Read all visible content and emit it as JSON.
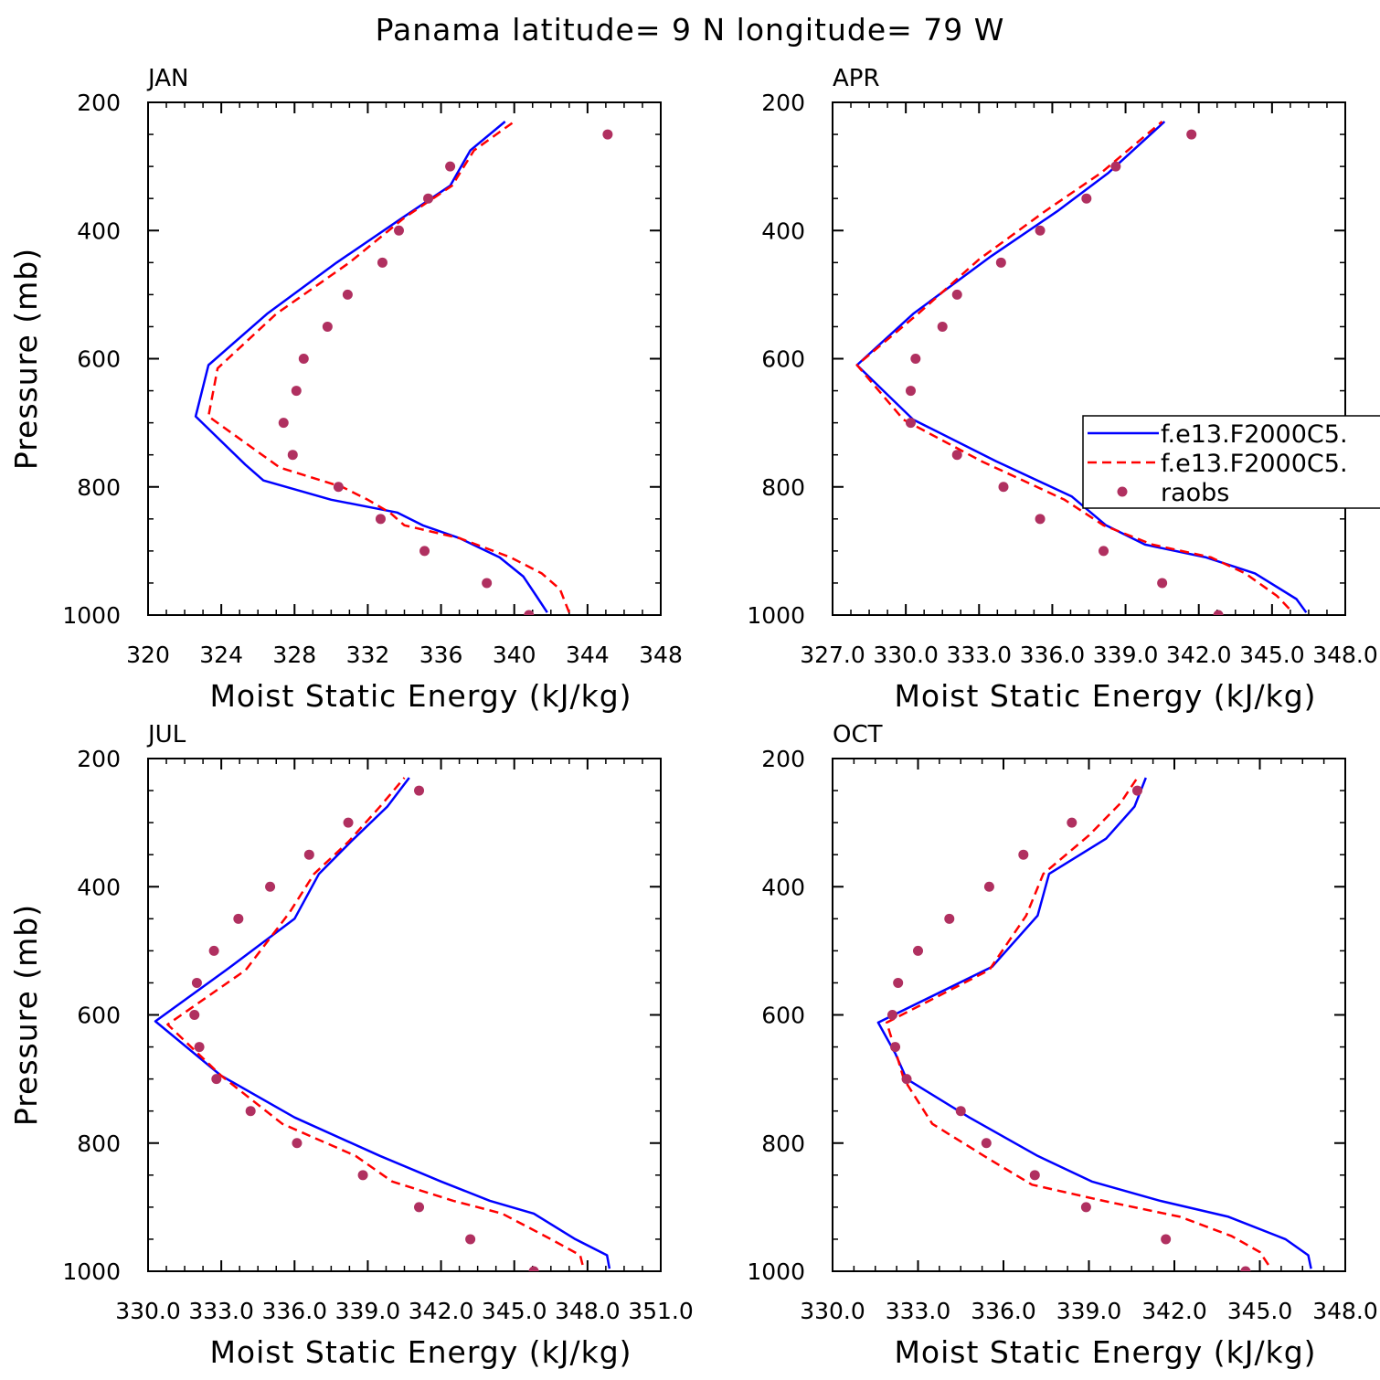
{
  "figure_title": "Panama  latitude= 9 N longitude= 79 W",
  "colors": {
    "model_1": "#0000ff",
    "model_2": "#ff0000",
    "raobs": "#b03060"
  },
  "chart_data": [
    {
      "type": "line",
      "panel_label": "JAN",
      "xlabel": "Moist Static Energy (kJ/kg)",
      "ylabel": "Pressure (mb)",
      "xlim": [
        320,
        348
      ],
      "ylim": [
        1000,
        200
      ],
      "y_reversed": true,
      "xticks": [
        "320",
        "324",
        "328",
        "332",
        "336",
        "340",
        "344",
        "348"
      ],
      "yticks": [
        "200",
        "400",
        "600",
        "800",
        "1000"
      ],
      "legend": null,
      "series": [
        {
          "name": "f.e13.F2000C5.",
          "style": "solid",
          "color": "#0000ff",
          "x": [
            341.8,
            341.2,
            340.5,
            339.2,
            337.0,
            335.0,
            333.6,
            330.0,
            326.3,
            325.3,
            322.6,
            323.3,
            326.5,
            330.3,
            333.9,
            336.5,
            337.6,
            339.5
          ],
          "y": [
            996,
            970,
            940,
            910,
            880,
            860,
            840,
            820,
            790,
            765,
            690,
            610,
            530,
            450,
            380,
            330,
            275,
            230
          ]
        },
        {
          "name": "f.e13.F2000C5.",
          "style": "dashed",
          "color": "#ff0000",
          "x": [
            343.0,
            342.5,
            341.5,
            339.8,
            337.0,
            334.0,
            333.2,
            332.0,
            330.6,
            327.2,
            323.3,
            323.8,
            327.0,
            331.0,
            334.0,
            336.6,
            337.8,
            340.0
          ],
          "y": [
            996,
            960,
            935,
            910,
            880,
            860,
            840,
            820,
            800,
            770,
            690,
            615,
            530,
            450,
            380,
            330,
            275,
            230
          ]
        },
        {
          "name": "raobs",
          "style": "marker",
          "color": "#b03060",
          "x": [
            340.8,
            338.5,
            335.1,
            332.7,
            330.4,
            327.9,
            327.4,
            328.1,
            328.5,
            329.8,
            330.9,
            332.8,
            333.7,
            335.3,
            336.5,
            345.1
          ],
          "y": [
            1000,
            950,
            900,
            850,
            800,
            750,
            700,
            650,
            600,
            550,
            500,
            450,
            400,
            350,
            300,
            250
          ]
        }
      ]
    },
    {
      "type": "line",
      "panel_label": "APR",
      "xlabel": "Moist Static Energy (kJ/kg)",
      "ylabel": "",
      "xlim": [
        327.0,
        348.0
      ],
      "ylim": [
        1000,
        200
      ],
      "y_reversed": true,
      "xticks": [
        "327.0",
        "330.0",
        "333.0",
        "336.0",
        "339.0",
        "342.0",
        "345.0",
        "348.0"
      ],
      "yticks": [
        "200",
        "400",
        "600",
        "800",
        "1000"
      ],
      "legend": {
        "placement": "right",
        "entries": [
          "f.e13.F2000C5.",
          "f.e13.F2000C5.",
          "raobs"
        ]
      },
      "series": [
        {
          "name": "f.e13.F2000C5.",
          "style": "solid",
          "color": "#0000ff",
          "x": [
            346.4,
            346.0,
            344.3,
            342.3,
            339.8,
            338.2,
            336.8,
            333.7,
            330.3,
            328.0,
            330.3,
            333.5,
            336.2,
            338.3,
            340.6
          ],
          "y": [
            996,
            975,
            935,
            910,
            890,
            860,
            815,
            760,
            695,
            610,
            530,
            440,
            370,
            310,
            230
          ]
        },
        {
          "name": "f.e13.F2000C5.",
          "style": "dashed",
          "color": "#ff0000",
          "x": [
            345.7,
            345.2,
            343.9,
            342.5,
            340.1,
            338.1,
            336.5,
            333.1,
            329.9,
            328.0,
            330.5,
            333.0,
            335.7,
            338.0,
            340.5
          ],
          "y": [
            990,
            970,
            935,
            910,
            890,
            860,
            820,
            760,
            695,
            610,
            530,
            445,
            370,
            310,
            230
          ]
        },
        {
          "name": "raobs",
          "style": "marker",
          "color": "#b03060",
          "x": [
            342.8,
            340.5,
            338.1,
            335.5,
            334.0,
            332.1,
            330.2,
            330.2,
            330.4,
            331.5,
            332.1,
            333.9,
            335.5,
            337.4,
            338.6,
            341.7
          ],
          "y": [
            1000,
            950,
            900,
            850,
            800,
            750,
            700,
            650,
            600,
            550,
            500,
            450,
            400,
            350,
            300,
            250
          ]
        }
      ]
    },
    {
      "type": "line",
      "panel_label": "JUL",
      "xlabel": "Moist Static Energy (kJ/kg)",
      "ylabel": "Pressure (mb)",
      "xlim": [
        330.0,
        351.0
      ],
      "ylim": [
        1000,
        200
      ],
      "y_reversed": true,
      "xticks": [
        "330.0",
        "333.0",
        "336.0",
        "339.0",
        "342.0",
        "345.0",
        "348.0",
        "351.0"
      ],
      "yticks": [
        "200",
        "400",
        "600",
        "800",
        "1000"
      ],
      "legend": null,
      "series": [
        {
          "name": "f.e13.F2000C5.",
          "style": "solid",
          "color": "#0000ff",
          "x": [
            348.9,
            348.8,
            347.5,
            345.8,
            344.0,
            342.0,
            339.5,
            336.0,
            333.0,
            330.3,
            333.2,
            336.0,
            337.0,
            338.3,
            339.8,
            340.7
          ],
          "y": [
            996,
            975,
            950,
            910,
            890,
            860,
            820,
            760,
            695,
            610,
            530,
            450,
            380,
            330,
            275,
            230
          ]
        },
        {
          "name": "f.e13.F2000C5.",
          "style": "dashed",
          "color": "#ff0000",
          "x": [
            347.8,
            347.7,
            346.5,
            344.5,
            342.5,
            340.0,
            338.5,
            335.5,
            333.0,
            330.8,
            334.0,
            335.8,
            336.8,
            338.2,
            339.5,
            340.5
          ],
          "y": [
            990,
            975,
            950,
            910,
            890,
            860,
            820,
            770,
            695,
            615,
            530,
            440,
            380,
            330,
            275,
            230
          ]
        },
        {
          "name": "raobs",
          "style": "marker",
          "color": "#b03060",
          "x": [
            345.8,
            343.2,
            341.1,
            338.8,
            336.1,
            334.2,
            332.8,
            332.1,
            331.9,
            332.0,
            332.7,
            333.7,
            335.0,
            336.6,
            338.2,
            341.1
          ],
          "y": [
            1000,
            950,
            900,
            850,
            800,
            750,
            700,
            650,
            600,
            550,
            500,
            450,
            400,
            350,
            300,
            250
          ]
        }
      ]
    },
    {
      "type": "line",
      "panel_label": "OCT",
      "xlabel": "Moist Static Energy (kJ/kg)",
      "ylabel": "",
      "xlim": [
        330.0,
        348.0
      ],
      "ylim": [
        1000,
        200
      ],
      "y_reversed": true,
      "xticks": [
        "330.0",
        "333.0",
        "336.0",
        "339.0",
        "342.0",
        "345.0",
        "348.0"
      ],
      "yticks": [
        "200",
        "400",
        "600",
        "800",
        "1000"
      ],
      "legend": null,
      "series": [
        {
          "name": "f.e13.F2000C5.",
          "style": "solid",
          "color": "#0000ff",
          "x": [
            346.8,
            346.7,
            345.9,
            343.9,
            341.5,
            339.1,
            337.2,
            334.8,
            332.6,
            332.2,
            331.6,
            335.6,
            337.2,
            337.6,
            339.6,
            340.6,
            341.0
          ],
          "y": [
            996,
            975,
            950,
            915,
            890,
            860,
            820,
            760,
            700,
            660,
            612,
            525,
            445,
            380,
            325,
            275,
            230
          ]
        },
        {
          "name": "f.e13.F2000C5.",
          "style": "dashed",
          "color": "#ff0000",
          "x": [
            345.3,
            345.0,
            344.0,
            342.2,
            339.5,
            337.0,
            335.5,
            333.5,
            332.5,
            332.2,
            331.9,
            335.5,
            336.8,
            337.4,
            339.0,
            340.1,
            340.7
          ],
          "y": [
            990,
            970,
            945,
            915,
            890,
            865,
            825,
            770,
            700,
            655,
            612,
            530,
            445,
            380,
            320,
            270,
            230
          ]
        },
        {
          "name": "raobs",
          "style": "marker",
          "color": "#b03060",
          "x": [
            344.5,
            341.7,
            338.9,
            337.1,
            335.4,
            334.5,
            332.6,
            332.2,
            332.1,
            332.3,
            333.0,
            334.1,
            335.5,
            336.7,
            338.4,
            340.7
          ],
          "y": [
            1000,
            950,
            900,
            850,
            800,
            750,
            700,
            650,
            600,
            550,
            500,
            450,
            400,
            350,
            300,
            250
          ]
        }
      ]
    }
  ]
}
